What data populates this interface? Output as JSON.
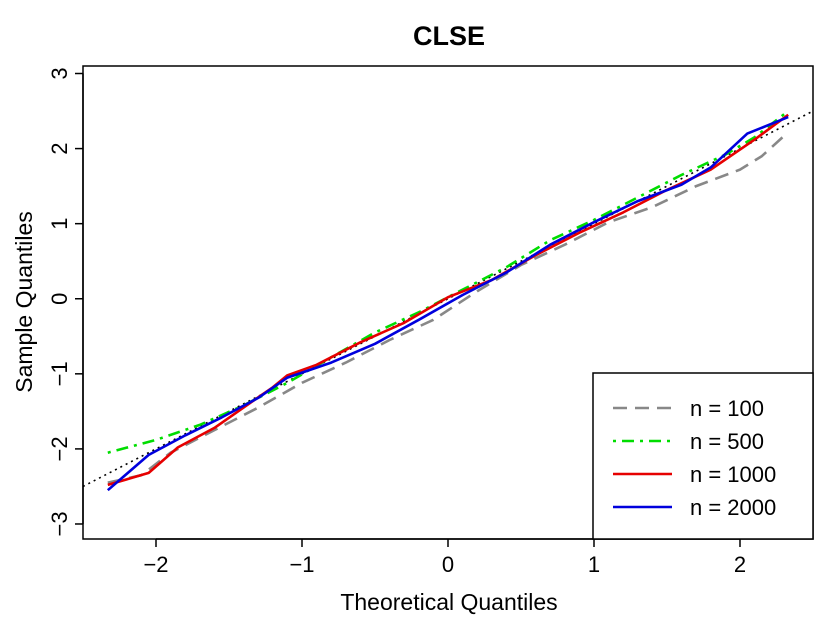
{
  "chart_data": {
    "type": "line",
    "title": "CLSE",
    "xlabel": "Theoretical Quantiles",
    "ylabel": "Sample Quantiles",
    "xlim": [
      -2.5,
      2.5
    ],
    "ylim": [
      -3.2,
      3.1
    ],
    "xticks": [
      -2,
      -1,
      0,
      1,
      2
    ],
    "xtick_labels": [
      "−2",
      "−1",
      "0",
      "1",
      "2"
    ],
    "yticks": [
      -3,
      -2,
      -1,
      0,
      1,
      2,
      3
    ],
    "ytick_labels": [
      "−3",
      "−2",
      "−1",
      "0",
      "1",
      "2",
      "3"
    ],
    "grid": false,
    "legend_position": "bottom-right",
    "reference_line": {
      "type": "dotted",
      "color": "#000000",
      "intercept": 0,
      "slope": 1
    },
    "series": [
      {
        "name": "n = 100",
        "color": "#888888",
        "dash": "dashed",
        "x": [
          -2.33,
          -2.1,
          -1.9,
          -1.6,
          -1.3,
          -1.0,
          -0.7,
          -0.4,
          -0.1,
          0.2,
          0.5,
          0.8,
          1.1,
          1.4,
          1.7,
          2.0,
          2.15,
          2.33
        ],
        "y": [
          -2.45,
          -2.35,
          -2.05,
          -1.75,
          -1.45,
          -1.12,
          -0.85,
          -0.55,
          -0.28,
          0.1,
          0.45,
          0.72,
          1.02,
          1.22,
          1.5,
          1.72,
          1.9,
          2.22
        ]
      },
      {
        "name": "n = 500",
        "color": "#00dd00",
        "dash": "dotdash",
        "x": [
          -2.33,
          -2.0,
          -1.7,
          -1.4,
          -1.1,
          -0.8,
          -0.5,
          -0.2,
          0.1,
          0.4,
          0.7,
          1.0,
          1.3,
          1.6,
          1.9,
          2.1,
          2.33
        ],
        "y": [
          -2.05,
          -1.88,
          -1.68,
          -1.42,
          -1.12,
          -0.78,
          -0.45,
          -0.18,
          0.12,
          0.42,
          0.78,
          1.05,
          1.35,
          1.65,
          1.92,
          2.15,
          2.5
        ]
      },
      {
        "name": "n = 1000",
        "color": "#e60000",
        "dash": "solid",
        "x": [
          -2.33,
          -2.05,
          -1.85,
          -1.6,
          -1.35,
          -1.2,
          -1.1,
          -0.9,
          -0.6,
          -0.3,
          0.0,
          0.3,
          0.6,
          0.9,
          1.2,
          1.5,
          1.8,
          2.1,
          2.33
        ],
        "y": [
          -2.48,
          -2.32,
          -1.98,
          -1.72,
          -1.38,
          -1.18,
          -1.02,
          -0.88,
          -0.58,
          -0.32,
          0.02,
          0.25,
          0.58,
          0.88,
          1.15,
          1.45,
          1.72,
          2.12,
          2.45
        ]
      },
      {
        "name": "n = 2000",
        "color": "#0000dd",
        "dash": "solid",
        "x": [
          -2.33,
          -2.05,
          -1.8,
          -1.55,
          -1.3,
          -1.1,
          -0.8,
          -0.5,
          -0.2,
          0.1,
          0.4,
          0.7,
          1.0,
          1.3,
          1.6,
          1.8,
          2.05,
          2.33
        ],
        "y": [
          -2.55,
          -2.08,
          -1.82,
          -1.58,
          -1.32,
          -1.05,
          -0.85,
          -0.6,
          -0.28,
          0.05,
          0.35,
          0.72,
          1.02,
          1.3,
          1.52,
          1.75,
          2.2,
          2.42
        ]
      }
    ]
  }
}
